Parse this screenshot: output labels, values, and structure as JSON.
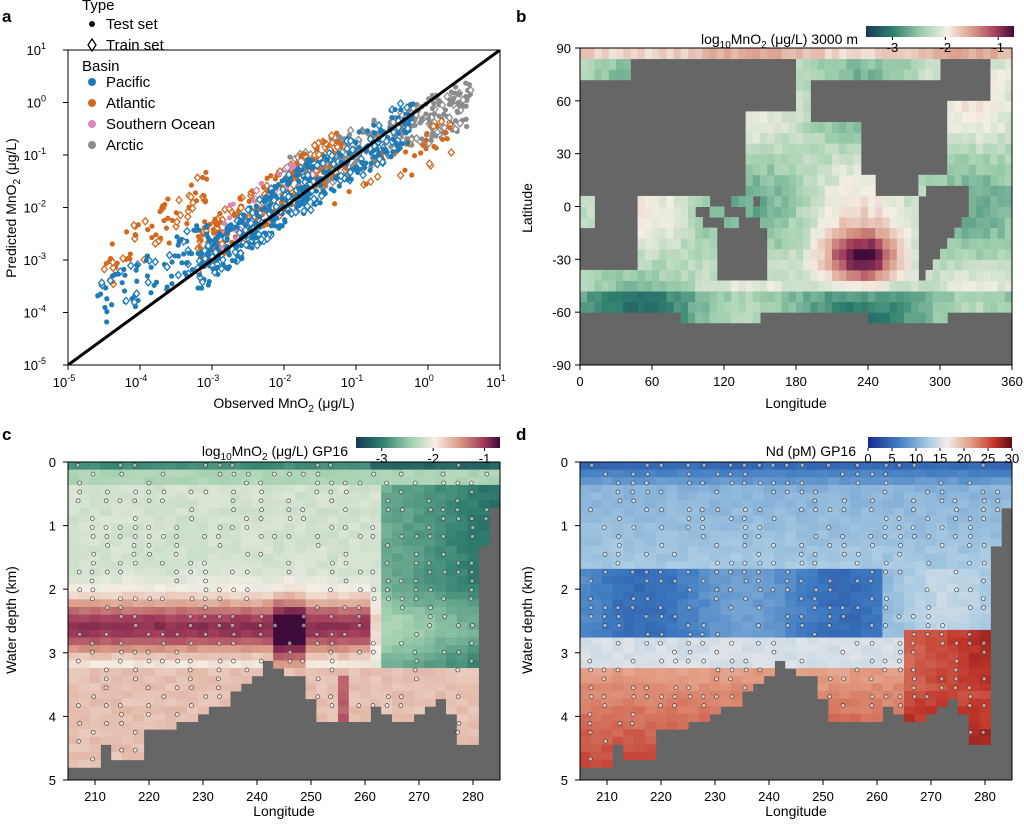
{
  "panels": {
    "a": {
      "label": "a"
    },
    "b": {
      "label": "b"
    },
    "c": {
      "label": "c"
    },
    "d": {
      "label": "d"
    }
  },
  "colors": {
    "pacific": "#1f7bb6",
    "atlantic": "#d2691e",
    "southern": "#d987b8",
    "arctic": "#8c8c8c",
    "land": "#666666"
  },
  "chart_data": [
    {
      "id": "a",
      "type": "scatter",
      "xlabel_main": "Observed MnO",
      "xlabel_sub": "2",
      "xlabel_unit": " (μg/L)",
      "ylabel_main": "Predicted MnO",
      "ylabel_sub": "2",
      "ylabel_unit": " (μg/L)",
      "xscale": "log",
      "yscale": "log",
      "xlim": [
        1e-05,
        10
      ],
      "ylim": [
        1e-05,
        10
      ],
      "x_ticks": [
        "10",
        "10",
        "10",
        "10",
        "10",
        "10",
        "10"
      ],
      "x_tick_exps": [
        "-5",
        "-4",
        "-3",
        "-2",
        "-1",
        "0",
        "1"
      ],
      "y_ticks": [
        "10",
        "10",
        "10",
        "10",
        "10",
        "10",
        "10"
      ],
      "y_tick_exps": [
        "-5",
        "-4",
        "-3",
        "-2",
        "-1",
        "0",
        "1"
      ],
      "legend": {
        "type_title": "Type",
        "test_label": "Test set",
        "train_label": "Train set",
        "basin_title": "Basin",
        "basins": [
          "Pacific",
          "Atlantic",
          "Southern Ocean",
          "Arctic"
        ]
      },
      "one_to_one_line": true,
      "series": [
        {
          "name": "Pacific",
          "clusters": [
            {
              "x_log": [
                -4.6,
                -3.0
              ],
              "y_log": [
                -3.9,
                -2.6
              ],
              "n": 90
            },
            {
              "x_log": [
                -3.2,
                -1.6
              ],
              "y_log": [
                -3.3,
                -1.4
              ],
              "n": 260
            },
            {
              "x_log": [
                -1.8,
                -0.2
              ],
              "y_log": [
                -1.8,
                -0.3
              ],
              "n": 180
            }
          ]
        },
        {
          "name": "Atlantic",
          "clusters": [
            {
              "x_log": [
                -4.5,
                -3.0
              ],
              "y_log": [
                -3.2,
                -1.6
              ],
              "n": 70
            },
            {
              "x_log": [
                -3.2,
                -1.2
              ],
              "y_log": [
                -2.8,
                -0.9
              ],
              "n": 260
            },
            {
              "x_log": [
                -1.3,
                0.5
              ],
              "y_log": [
                -1.6,
                -0.5
              ],
              "n": 40
            }
          ]
        },
        {
          "name": "Southern Ocean",
          "clusters": [
            {
              "x_log": [
                -2.9,
                -1.6
              ],
              "y_log": [
                -2.4,
                -1.4
              ],
              "n": 40
            }
          ]
        },
        {
          "name": "Arctic",
          "clusters": [
            {
              "x_log": [
                -2.0,
                0.6
              ],
              "y_log": [
                -1.5,
                0.0
              ],
              "n": 320
            }
          ]
        }
      ]
    },
    {
      "id": "b",
      "type": "heatmap",
      "title_pre": "log",
      "title_sub": "10",
      "title_mid": "MnO",
      "title_sub2": "2",
      "title_post": " (μg/L) 3000 m",
      "xlabel": "Longitude",
      "ylabel": "Latitude",
      "xlim": [
        0,
        360
      ],
      "ylim": [
        -90,
        90
      ],
      "x_ticks": [
        "0",
        "60",
        "120",
        "180",
        "240",
        "300",
        "360"
      ],
      "y_ticks": [
        "90",
        "60",
        "30",
        "0",
        "-30",
        "-60",
        "-90"
      ],
      "colorbar_ticks": [
        "-3",
        "-2",
        "-1"
      ],
      "colorbar_range": [
        -3.5,
        -0.7
      ]
    },
    {
      "id": "c",
      "type": "heatmap",
      "title_pre": "log",
      "title_sub": "10",
      "title_mid": "MnO",
      "title_sub2": "2",
      "title_post": " (μg/L) GP16",
      "xlabel": "Longitude",
      "ylabel": "Water depth (km)",
      "xlim": [
        205,
        285
      ],
      "ylim": [
        0,
        5
      ],
      "x_ticks": [
        "210",
        "220",
        "230",
        "240",
        "250",
        "260",
        "270",
        "280"
      ],
      "y_ticks": [
        "0",
        "1",
        "2",
        "3",
        "4",
        "5"
      ],
      "colorbar_ticks": [
        "-3",
        "-2",
        "-1"
      ],
      "colorbar_range": [
        -3.5,
        -0.7
      ]
    },
    {
      "id": "d",
      "type": "heatmap",
      "title": "Nd (pM) GP16",
      "xlabel": "Longitude",
      "ylabel": "Water depth (km)",
      "xlim": [
        205,
        285
      ],
      "ylim": [
        0,
        5
      ],
      "x_ticks": [
        "210",
        "220",
        "230",
        "240",
        "250",
        "260",
        "270",
        "280"
      ],
      "y_ticks": [
        "0",
        "1",
        "2",
        "3",
        "4",
        "5"
      ],
      "colorbar_ticks": [
        "0",
        "5",
        "10",
        "15",
        "20",
        "25",
        "30"
      ],
      "colorbar_range": [
        0,
        30
      ]
    }
  ]
}
